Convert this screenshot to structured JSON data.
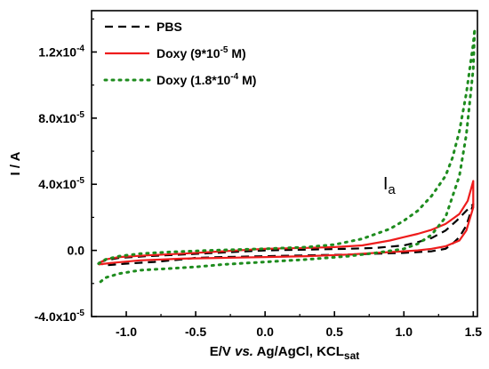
{
  "chart_data": {
    "type": "line",
    "xlabel_parts": {
      "pre": "E/V ",
      "italic": "vs.",
      "post": " Ag/AgCl, KCL",
      "sub": "sat"
    },
    "ylabel": "I / A",
    "xlim": [
      -1.25,
      1.53
    ],
    "ylim": [
      -4e-05,
      0.000145
    ],
    "x_ticks": [
      -1.0,
      -0.5,
      0.0,
      0.5,
      1.0,
      1.5
    ],
    "x_tick_labels": [
      "-1.0",
      "-0.5",
      "0.0",
      "0.5",
      "1.0",
      "1.5"
    ],
    "y_ticks": [
      -4e-05,
      0.0,
      4e-05,
      8e-05,
      0.00012
    ],
    "y_tick_labels": [
      "-4.0x10-5",
      "0.0",
      "4.0x10-5",
      "8.0x10-5",
      "1.2x10-4"
    ],
    "y_tick_label_parts": [
      {
        "base": "-4.0x10",
        "exp": "-5"
      },
      {
        "base": "0.0",
        "exp": ""
      },
      {
        "base": "4.0x10",
        "exp": "-5"
      },
      {
        "base": "8.0x10",
        "exp": "-5"
      },
      {
        "base": "1.2x10",
        "exp": "-4"
      }
    ],
    "legend_position": "top-left",
    "grid": false,
    "series": [
      {
        "name": "PBS",
        "color": "#000000",
        "style": "dashed",
        "x": [
          -1.2,
          -1.15,
          -1.05,
          -0.85,
          -0.6,
          -0.3,
          0.0,
          0.3,
          0.6,
          0.8,
          1.0,
          1.1,
          1.2,
          1.3,
          1.38,
          1.45,
          1.5,
          1.45,
          1.4,
          1.35,
          1.3,
          1.2,
          1.1,
          1.0,
          0.8,
          0.6,
          0.3,
          0.0,
          -0.3,
          -0.5,
          -0.6,
          -0.8,
          -1.0,
          -1.15,
          -1.2
        ],
        "y": [
          -7.5e-06,
          -6e-06,
          -4.5e-06,
          -3.5e-06,
          -2.5e-06,
          -1.2e-06,
          0.0,
          5e-07,
          1e-06,
          1.5e-06,
          3e-06,
          5e-06,
          7.5e-06,
          1.2e-05,
          1.8e-05,
          2.4e-05,
          2.8e-05,
          1.5e-05,
          8e-06,
          4e-06,
          1e-06,
          -5e-07,
          -1e-06,
          -1.5e-06,
          -2e-06,
          -2.5e-06,
          -3e-06,
          -3.5e-06,
          -4e-06,
          -4.5e-06,
          -5.5e-06,
          -7e-06,
          -8e-06,
          -9e-06,
          -7.5e-06
        ]
      },
      {
        "name": "Doxy (9*10-5 M)",
        "name_parts": {
          "pre": "Doxy (9*10",
          "sup": "-5",
          "post": " M)"
        },
        "color": "#ee1c1c",
        "style": "solid",
        "x": [
          -1.2,
          -1.15,
          -1.05,
          -0.85,
          -0.6,
          -0.3,
          0.0,
          0.3,
          0.5,
          0.7,
          0.9,
          1.0,
          1.1,
          1.2,
          1.3,
          1.4,
          1.46,
          1.5,
          1.5,
          1.45,
          1.4,
          1.3,
          1.2,
          1.1,
          1.0,
          0.8,
          0.6,
          0.3,
          0.0,
          -0.3,
          -0.6,
          -0.9,
          -1.1,
          -1.2
        ],
        "y": [
          -8e-06,
          -5.5e-06,
          -4e-06,
          -3e-06,
          -2e-06,
          -5e-07,
          1e-06,
          1.5e-06,
          2e-06,
          3e-06,
          6e-06,
          8e-06,
          1e-05,
          1.25e-05,
          1.6e-05,
          2.2e-05,
          3e-05,
          4.2e-05,
          2.6e-05,
          1.2e-05,
          6e-06,
          2.5e-06,
          1e-06,
          0.0,
          -5e-07,
          -1.5e-06,
          -2.5e-06,
          -3.5e-06,
          -4e-06,
          -4.5e-06,
          -5e-06,
          -6e-06,
          -7.5e-06,
          -8.5e-06
        ]
      },
      {
        "name": "Doxy (1.8*10-4 M)",
        "name_parts": {
          "pre": "Doxy (1.8*10",
          "sup": "-4",
          "post": " M)"
        },
        "color": "#1e8c1e",
        "style": "dotted",
        "x": [
          -1.2,
          -1.15,
          -1.05,
          -0.9,
          -0.7,
          -0.4,
          0.0,
          0.3,
          0.5,
          0.7,
          0.9,
          1.0,
          1.1,
          1.2,
          1.3,
          1.35,
          1.4,
          1.45,
          1.5,
          1.51,
          1.5,
          1.45,
          1.4,
          1.3,
          1.2,
          1.1,
          1.0,
          0.8,
          0.6,
          0.3,
          0.0,
          -0.3,
          -0.5,
          -0.7,
          -0.9,
          -1.05,
          -1.15,
          -1.2
        ],
        "y": [
          -8e-06,
          -5.5e-06,
          -3.5e-06,
          -2e-06,
          -1e-06,
          0.0,
          1e-06,
          2e-06,
          3.5e-06,
          7e-06,
          1.3e-05,
          1.8e-05,
          2.4e-05,
          3.3e-05,
          4.5e-05,
          5.6e-05,
          7.2e-05,
          9.5e-05,
          0.000125,
          0.000134,
          0.00011,
          7e-05,
          4.5e-05,
          2e-05,
          9.5e-06,
          4e-06,
          1e-06,
          -1.5e-06,
          -3.5e-06,
          -5.5e-06,
          -7e-06,
          -8.5e-06,
          -1e-05,
          -1.1e-05,
          -1.2e-05,
          -1.4e-05,
          -1.65e-05,
          -2e-05
        ]
      }
    ],
    "annotation": {
      "text": "I",
      "sub": "a",
      "x": 0.85,
      "y": 3.7e-05
    }
  }
}
